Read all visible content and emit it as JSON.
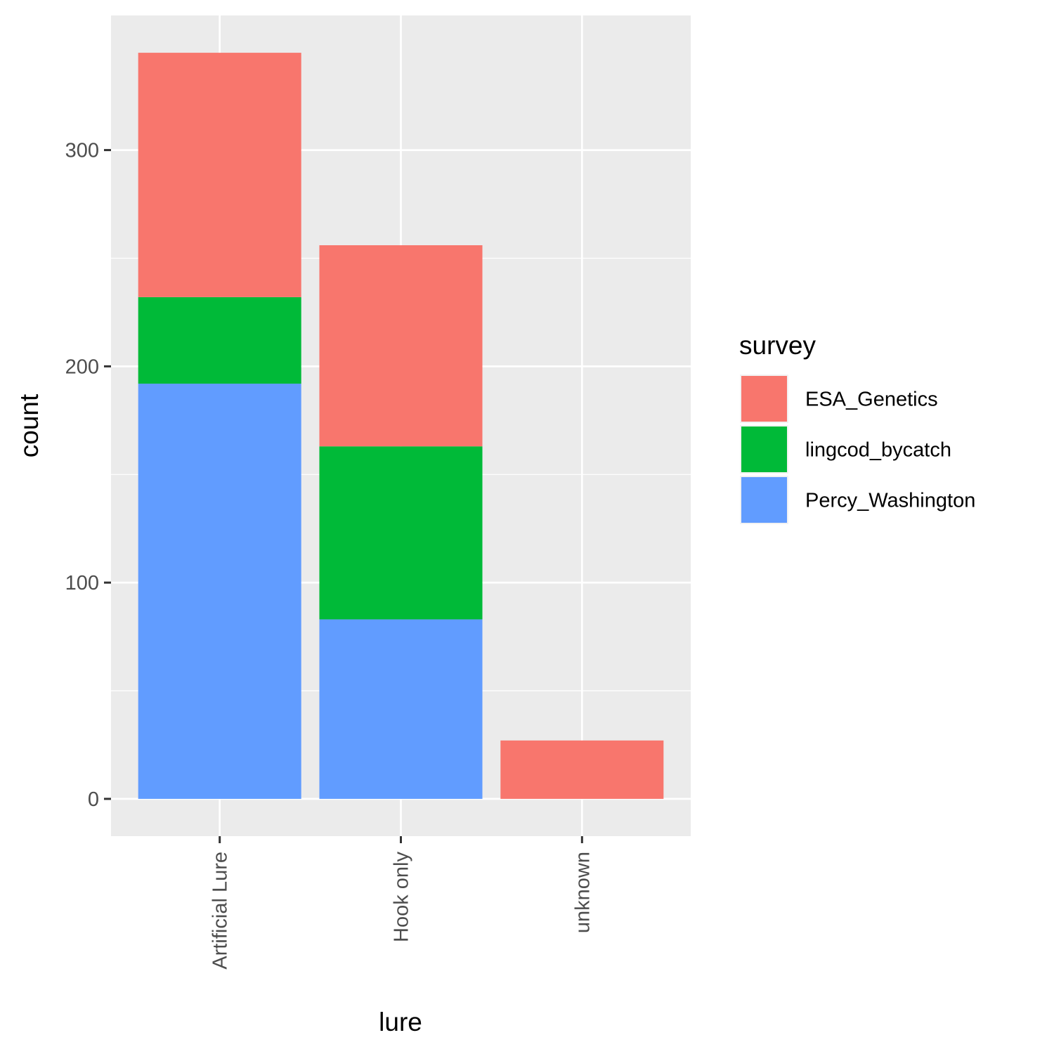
{
  "chart_data": {
    "type": "bar",
    "stacked": true,
    "xlabel": "lure",
    "ylabel": "count",
    "categories": [
      "Artificial Lure",
      "Hook only",
      "unknown"
    ],
    "series": [
      {
        "name": "ESA_Genetics",
        "color": "#F8766D",
        "values": [
          113,
          93,
          27
        ]
      },
      {
        "name": "lingcod_bycatch",
        "color": "#00BA38",
        "values": [
          40,
          80,
          0
        ]
      },
      {
        "name": "Percy_Washington",
        "color": "#619CFF",
        "values": [
          192,
          83,
          0
        ]
      }
    ],
    "stack_order_bottom_to_top": [
      "Percy_Washington",
      "lingcod_bycatch",
      "ESA_Genetics"
    ],
    "ylim": [
      -17.25,
      362.25
    ],
    "yticks": [
      0,
      100,
      200,
      300
    ],
    "ytick_labels": [
      "0",
      "100",
      "200",
      "300"
    ],
    "grid": true,
    "legend": {
      "title": "survey",
      "position": "right"
    },
    "panel_background": "#EBEBEB"
  }
}
